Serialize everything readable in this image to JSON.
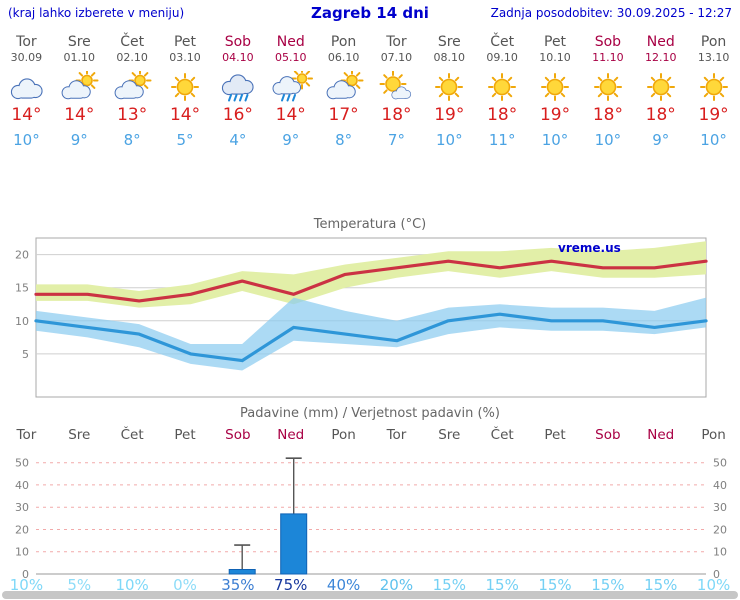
{
  "header": {
    "left_note": "(kraj lahko izberete v meniju)",
    "title": "Zagreb 14 dni",
    "updated": "Zadnja posodobitev: 30.09.2025 - 12:27"
  },
  "watermark": "vreme.us",
  "forecast_days": [
    {
      "name": "Tor",
      "date": "30.09",
      "weekend": false,
      "icon": "cloudy",
      "high": "14°",
      "low": "10°"
    },
    {
      "name": "Sre",
      "date": "01.10",
      "weekend": false,
      "icon": "partly-cloudy",
      "high": "14°",
      "low": "9°"
    },
    {
      "name": "Čet",
      "date": "02.10",
      "weekend": false,
      "icon": "partly-cloudy",
      "high": "13°",
      "low": "8°"
    },
    {
      "name": "Pet",
      "date": "03.10",
      "weekend": false,
      "icon": "sunny",
      "high": "14°",
      "low": "5°"
    },
    {
      "name": "Sob",
      "date": "04.10",
      "weekend": true,
      "icon": "rain",
      "high": "16°",
      "low": "4°"
    },
    {
      "name": "Ned",
      "date": "05.10",
      "weekend": true,
      "icon": "rain-showers",
      "high": "14°",
      "low": "9°"
    },
    {
      "name": "Pon",
      "date": "06.10",
      "weekend": false,
      "icon": "partly-cloudy",
      "high": "17°",
      "low": "8°"
    },
    {
      "name": "Tor",
      "date": "07.10",
      "weekend": false,
      "icon": "mostly-sunny",
      "high": "18°",
      "low": "7°"
    },
    {
      "name": "Sre",
      "date": "08.10",
      "weekend": false,
      "icon": "sunny",
      "high": "19°",
      "low": "10°"
    },
    {
      "name": "Čet",
      "date": "09.10",
      "weekend": false,
      "icon": "sunny",
      "high": "18°",
      "low": "11°"
    },
    {
      "name": "Pet",
      "date": "10.10",
      "weekend": false,
      "icon": "sunny",
      "high": "19°",
      "low": "10°"
    },
    {
      "name": "Sob",
      "date": "11.10",
      "weekend": true,
      "icon": "sunny",
      "high": "18°",
      "low": "10°"
    },
    {
      "name": "Ned",
      "date": "12.10",
      "weekend": true,
      "icon": "sunny",
      "high": "18°",
      "low": "9°"
    },
    {
      "name": "Pon",
      "date": "13.10",
      "weekend": false,
      "icon": "sunny",
      "high": "19°",
      "low": "10°"
    }
  ],
  "chart_data": [
    {
      "type": "line",
      "title": "Temperatura (°C)",
      "x_labels": [
        "Tor",
        "Sre",
        "Čet",
        "Pet",
        "Sob",
        "Ned",
        "Pon",
        "Tor",
        "Sre",
        "Čet",
        "Pet",
        "Sob",
        "Ned",
        "Pon"
      ],
      "ylim": [
        -1.5,
        22.5
      ],
      "yticks": [
        5,
        10,
        15,
        20
      ],
      "grid": true,
      "legend": "none",
      "series": [
        {
          "name": "max temperature",
          "color": "#cb3243",
          "values": [
            14,
            14,
            13,
            14,
            16,
            14,
            17,
            18,
            19,
            18,
            19,
            18,
            18,
            19
          ]
        },
        {
          "name": "min temperature",
          "color": "#2e96d8",
          "values": [
            10,
            9,
            8,
            5,
            4,
            9,
            8,
            7,
            10,
            11,
            10,
            10,
            9,
            10
          ]
        }
      ],
      "bands": [
        {
          "name": "max-temp-range",
          "color": "#e2efa8",
          "upper": [
            15.5,
            15.5,
            14.5,
            15.5,
            17.5,
            17,
            18.5,
            19.5,
            20.5,
            20.5,
            21,
            20.5,
            21,
            22
          ],
          "lower": [
            13,
            13,
            12,
            12.5,
            14.5,
            12.5,
            15,
            16.5,
            17.5,
            16.5,
            17.5,
            16.5,
            16.5,
            17
          ]
        },
        {
          "name": "min-temp-range",
          "color": "#8cccf0",
          "upper": [
            11.5,
            10.5,
            9.5,
            6.5,
            6.5,
            13.5,
            11.5,
            10,
            12,
            12.5,
            12,
            12,
            11.5,
            13.5
          ],
          "lower": [
            8.5,
            7.5,
            6,
            3.5,
            2.5,
            7,
            6.5,
            6,
            8,
            9,
            8.5,
            8.5,
            8,
            9
          ]
        }
      ]
    },
    {
      "type": "bar",
      "title": "Padavine (mm) / Verjetnost padavin (%)",
      "categories": [
        "Tor",
        "Sre",
        "Čet",
        "Pet",
        "Sob",
        "Ned",
        "Pon",
        "Tor",
        "Sre",
        "Čet",
        "Pet",
        "Sob",
        "Ned",
        "Pon"
      ],
      "weekend_flags": [
        false,
        false,
        false,
        false,
        true,
        true,
        false,
        false,
        false,
        false,
        false,
        true,
        true,
        false
      ],
      "ylim": [
        0,
        53
      ],
      "yticks": [
        0,
        10,
        20,
        30,
        40,
        50
      ],
      "grid": true,
      "precip_mm": [
        0,
        0,
        0,
        0,
        2,
        27,
        0,
        0,
        0,
        0,
        0,
        0,
        0,
        0
      ],
      "precip_max_mm": [
        0,
        0,
        0,
        0,
        13,
        52,
        0,
        0,
        0,
        0,
        0,
        0,
        0,
        0
      ],
      "bar_color": "#1c86d8",
      "probabilities": [
        {
          "label": "10%",
          "color": "#7fd8f8"
        },
        {
          "label": "5%",
          "color": "#8edcf8"
        },
        {
          "label": "10%",
          "color": "#7fd8f8"
        },
        {
          "label": "0%",
          "color": "#8edcf8"
        },
        {
          "label": "35%",
          "color": "#3c7ed2"
        },
        {
          "label": "75%",
          "color": "#16379d"
        },
        {
          "label": "40%",
          "color": "#3c86d8"
        },
        {
          "label": "20%",
          "color": "#5fc2ee"
        },
        {
          "label": "15%",
          "color": "#74d0f4"
        },
        {
          "label": "15%",
          "color": "#74d0f4"
        },
        {
          "label": "15%",
          "color": "#74d0f4"
        },
        {
          "label": "15%",
          "color": "#74d0f4"
        },
        {
          "label": "15%",
          "color": "#74d0f4"
        },
        {
          "label": "10%",
          "color": "#7fd8f8"
        }
      ]
    }
  ],
  "colors": {
    "link_blue": "#0000cc",
    "day_gray": "#555555",
    "weekend_red": "#a80044",
    "high_red": "#d81e1e",
    "low_blue": "#4ba3e3"
  }
}
